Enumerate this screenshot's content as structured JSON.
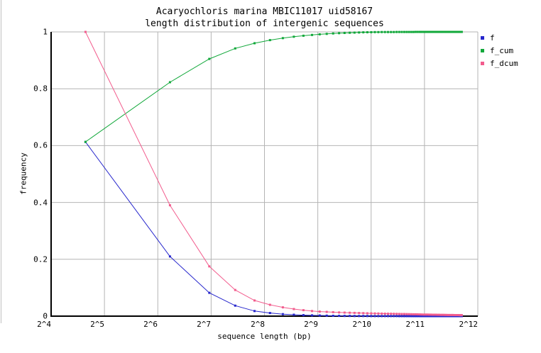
{
  "title": {
    "line1": "Acaryochloris marina MBIC11017 uid58167",
    "line2": "length distribution of intergenic sequences"
  },
  "axes": {
    "x": {
      "label": "sequence length (bp)",
      "scale": "log2",
      "tick_labels": [
        "2^4",
        "2^5",
        "2^6",
        "2^7",
        "2^8",
        "2^9",
        "2^10",
        "2^11",
        "2^12"
      ],
      "tick_exponents": [
        4,
        5,
        6,
        7,
        8,
        9,
        10,
        11,
        12
      ]
    },
    "y": {
      "label": "frequency",
      "tick_labels": [
        "0",
        "0.2",
        "0.4",
        "0.6",
        "0.8",
        "1"
      ],
      "ticks": [
        0,
        0.2,
        0.4,
        0.6,
        0.8,
        1
      ]
    }
  },
  "legend": {
    "items": [
      {
        "label": "f",
        "color": "#2626cc"
      },
      {
        "label": "f_cum",
        "color": "#11a83a"
      },
      {
        "label": "f_dcum",
        "color": "#f25c8d"
      }
    ]
  },
  "colors": {
    "background": "#ffffff",
    "grid": "#b4b4b4",
    "axis": "#000000",
    "series_f": "#2626cc",
    "series_f_cum": "#11a83a",
    "series_f_dcum": "#f25c8d"
  },
  "chart_data": {
    "type": "line",
    "title": "Acaryochloris marina MBIC11017 uid58167 — length distribution of intergenic sequences",
    "xlabel": "sequence length (bp)",
    "ylabel": "frequency",
    "x_scale": "log2",
    "xlim_log2": [
      4,
      12
    ],
    "ylim": [
      0,
      1
    ],
    "grid": true,
    "marker": "filled-square",
    "legend_position": "outside-top-right",
    "x": [
      25,
      75,
      125,
      175,
      225,
      275,
      325,
      375,
      425,
      475,
      525,
      575,
      625,
      675,
      725,
      775,
      825,
      875,
      925,
      975,
      1025,
      1075,
      1125,
      1175,
      1225,
      1275,
      1325,
      1375,
      1425,
      1475,
      1525,
      1575,
      1625,
      1675,
      1725,
      1775,
      1825,
      1875,
      1925,
      1975,
      2025,
      2075,
      2125,
      2175,
      2225,
      2275,
      2325,
      2375,
      2425,
      2475,
      2525,
      2575,
      2625,
      2675,
      2725,
      2775,
      2825,
      2875,
      2925,
      2975,
      3025,
      3075,
      3125,
      3175,
      3225,
      3275,
      3325
    ],
    "series": [
      {
        "name": "f",
        "color": "#2626cc",
        "values": [
          0.613,
          0.21,
          0.082,
          0.037,
          0.018,
          0.011,
          0.007,
          0.005,
          0.0035,
          0.0027,
          0.0022,
          0.0017,
          0.0013,
          0.001,
          0.0008,
          0.0007,
          0.0006,
          0.0005,
          0.0004,
          0.0004,
          0.0003,
          0.0003,
          0.0003,
          0.0002,
          0.0002,
          0.0002,
          0.0002,
          0.0002,
          0.0002,
          0.0001,
          0.0001,
          0.0001,
          0.0001,
          0.0001,
          0.0001,
          0.0001,
          0.0001,
          0.0001,
          0.0001,
          0.0001,
          0.0001,
          0.0001,
          0.0001,
          0.0001,
          0.0001,
          0.0001,
          0.0001,
          0.0001,
          0.0001,
          0.0001,
          0.0001,
          0.0001,
          0.0001,
          0.0001,
          0.0001,
          0.0001,
          0.0001,
          0.0001,
          0.0001,
          0.0001,
          0.0001,
          0.0001,
          0.0001,
          0.0001,
          0.0001,
          0.0001,
          0.0001
        ]
      },
      {
        "name": "f_cum",
        "color": "#11a83a",
        "values": [
          0.613,
          0.823,
          0.905,
          0.942,
          0.96,
          0.971,
          0.978,
          0.983,
          0.9865,
          0.9892,
          0.9914,
          0.9931,
          0.9944,
          0.9954,
          0.9962,
          0.9969,
          0.9975,
          0.998,
          0.9984,
          0.9988,
          0.9991,
          0.9992,
          0.9993,
          0.9994,
          0.9995,
          0.9995,
          0.9996,
          0.9996,
          0.9997,
          0.9997,
          0.9997,
          0.9998,
          0.9998,
          0.9998,
          0.9998,
          0.9998,
          0.9999,
          0.9999,
          0.9999,
          0.9999,
          0.9999,
          0.9999,
          0.9999,
          0.9999,
          1,
          1,
          1,
          1,
          1,
          1,
          1,
          1,
          1,
          1,
          1,
          1,
          1,
          1,
          1,
          1,
          1,
          1,
          1,
          1,
          1,
          1,
          1
        ]
      },
      {
        "name": "f_dcum",
        "color": "#f25c8d",
        "values": [
          1,
          0.39,
          0.175,
          0.092,
          0.055,
          0.04,
          0.031,
          0.025,
          0.021,
          0.018,
          0.016,
          0.015,
          0.014,
          0.013,
          0.0125,
          0.012,
          0.0115,
          0.011,
          0.0105,
          0.01,
          0.0098,
          0.0095,
          0.0092,
          0.009,
          0.0088,
          0.0086,
          0.0084,
          0.0082,
          0.008,
          0.0078,
          0.0076,
          0.0074,
          0.0072,
          0.007,
          0.0068,
          0.0066,
          0.0064,
          0.0062,
          0.006,
          0.0058,
          0.0056,
          0.0055,
          0.0054,
          0.0053,
          0.0052,
          0.0051,
          0.005,
          0.0049,
          0.0048,
          0.0047,
          0.0046,
          0.0045,
          0.0044,
          0.0043,
          0.0042,
          0.0041,
          0.004,
          0.004,
          0.0039,
          0.0039,
          0.0038,
          0.0038,
          0.0037,
          0.0037,
          0.0036,
          0.0036,
          0.0035
        ]
      }
    ]
  }
}
